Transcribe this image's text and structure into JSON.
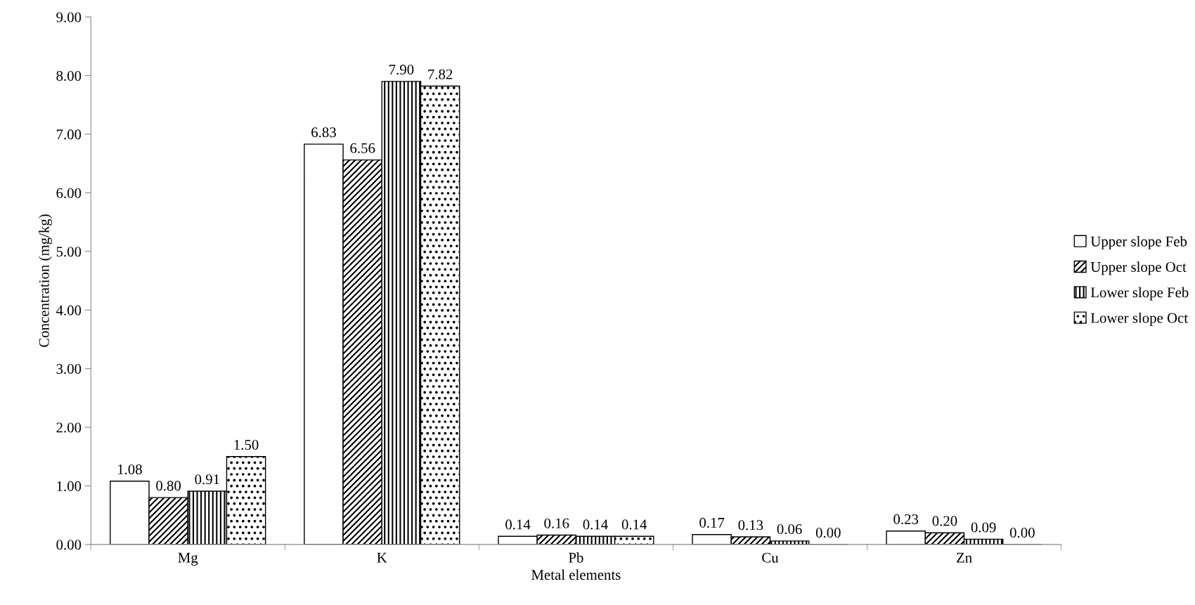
{
  "chart_data": {
    "type": "bar",
    "xlabel": "Metal elements",
    "ylabel": "Concentration (mg/kg)",
    "categories": [
      "Mg",
      "K",
      "Pb",
      "Cu",
      "Zn"
    ],
    "series": [
      {
        "name": "Upper slope Feb",
        "color": "#ffffff",
        "values": [
          1.08,
          6.83,
          0.14,
          0.17,
          0.23
        ],
        "value_labels": [
          "1.08",
          "6.83",
          "0.14",
          "0.17",
          "0.23"
        ]
      },
      {
        "name": "Upper slope Oct",
        "color": "#000000",
        "values": [
          0.8,
          6.56,
          0.16,
          0.13,
          0.2
        ],
        "value_labels": [
          "0.80",
          "6.56",
          "0.16",
          "0.13",
          "0.20"
        ]
      },
      {
        "name": "Lower slope Feb",
        "color": "#000000",
        "values": [
          0.91,
          7.9,
          0.14,
          0.06,
          0.09
        ],
        "value_labels": [
          "0.91",
          "7.90",
          "0.14",
          "0.06",
          "0.09"
        ]
      },
      {
        "name": "Lower slope Oct",
        "color": "#000000",
        "values": [
          1.5,
          7.82,
          0.14,
          0.0,
          0.0
        ],
        "value_labels": [
          "1.50",
          "7.82",
          "0.14",
          "0.00",
          "0.00"
        ]
      }
    ],
    "ylim": [
      0,
      9
    ],
    "yticks": [
      {
        "value": 0,
        "label": "0.00"
      },
      {
        "value": 1,
        "label": "1.00"
      },
      {
        "value": 2,
        "label": "2.00"
      },
      {
        "value": 3,
        "label": "3.00"
      },
      {
        "value": 4,
        "label": "4.00"
      },
      {
        "value": 5,
        "label": "5.00"
      },
      {
        "value": 6,
        "label": "6.00"
      },
      {
        "value": 7,
        "label": "7.00"
      },
      {
        "value": 8,
        "label": "8.00"
      },
      {
        "value": 9,
        "label": "9.00"
      }
    ],
    "grid": false,
    "legend": "right"
  }
}
